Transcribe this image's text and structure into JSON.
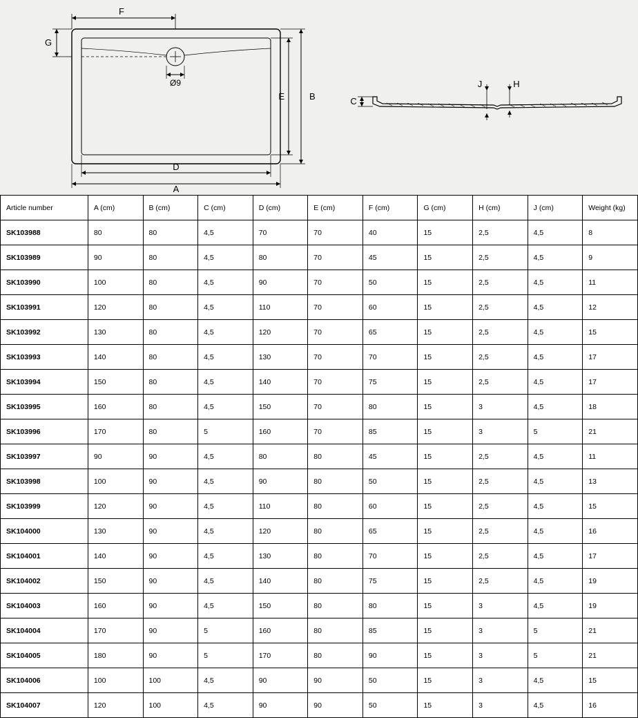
{
  "diagram": {
    "labels": {
      "F": "F",
      "G": "G",
      "D": "D",
      "A": "A",
      "E": "E",
      "B": "B",
      "C": "C",
      "J": "J",
      "H": "H",
      "diameter": "Ø9"
    },
    "colors": {
      "bg": "#f0f0ee",
      "line": "#000000",
      "hatch": "#000000"
    }
  },
  "table": {
    "columns": [
      "Article number",
      "A (cm)",
      "B (cm)",
      "C (cm)",
      "D (cm)",
      "E (cm)",
      "F (cm)",
      "G (cm)",
      "H (cm)",
      "J (cm)",
      "Weight (kg)"
    ],
    "rows": [
      [
        "SK103988",
        "80",
        "80",
        "4,5",
        "70",
        "70",
        "40",
        "15",
        "2,5",
        "4,5",
        "8"
      ],
      [
        "SK103989",
        "90",
        "80",
        "4,5",
        "80",
        "70",
        "45",
        "15",
        "2,5",
        "4,5",
        "9"
      ],
      [
        "SK103990",
        "100",
        "80",
        "4,5",
        "90",
        "70",
        "50",
        "15",
        "2,5",
        "4,5",
        "11"
      ],
      [
        "SK103991",
        "120",
        "80",
        "4,5",
        "110",
        "70",
        "60",
        "15",
        "2,5",
        "4,5",
        "12"
      ],
      [
        "SK103992",
        "130",
        "80",
        "4,5",
        "120",
        "70",
        "65",
        "15",
        "2,5",
        "4,5",
        "15"
      ],
      [
        "SK103993",
        "140",
        "80",
        "4,5",
        "130",
        "70",
        "70",
        "15",
        "2,5",
        "4,5",
        "17"
      ],
      [
        "SK103994",
        "150",
        "80",
        "4,5",
        "140",
        "70",
        "75",
        "15",
        "2,5",
        "4,5",
        "17"
      ],
      [
        "SK103995",
        "160",
        "80",
        "4,5",
        "150",
        "70",
        "80",
        "15",
        "3",
        "4,5",
        "18"
      ],
      [
        "SK103996",
        "170",
        "80",
        "5",
        "160",
        "70",
        "85",
        "15",
        "3",
        "5",
        "21"
      ],
      [
        "SK103997",
        "90",
        "90",
        "4,5",
        "80",
        "80",
        "45",
        "15",
        "2,5",
        "4,5",
        "11"
      ],
      [
        "SK103998",
        "100",
        "90",
        "4,5",
        "90",
        "80",
        "50",
        "15",
        "2,5",
        "4,5",
        "13"
      ],
      [
        "SK103999",
        "120",
        "90",
        "4,5",
        "110",
        "80",
        "60",
        "15",
        "2,5",
        "4,5",
        "15"
      ],
      [
        "SK104000",
        "130",
        "90",
        "4,5",
        "120",
        "80",
        "65",
        "15",
        "2,5",
        "4,5",
        "16"
      ],
      [
        "SK104001",
        "140",
        "90",
        "4,5",
        "130",
        "80",
        "70",
        "15",
        "2,5",
        "4,5",
        "17"
      ],
      [
        "SK104002",
        "150",
        "90",
        "4,5",
        "140",
        "80",
        "75",
        "15",
        "2,5",
        "4,5",
        "19"
      ],
      [
        "SK104003",
        "160",
        "90",
        "4,5",
        "150",
        "80",
        "80",
        "15",
        "3",
        "4,5",
        "19"
      ],
      [
        "SK104004",
        "170",
        "90",
        "5",
        "160",
        "80",
        "85",
        "15",
        "3",
        "5",
        "21"
      ],
      [
        "SK104005",
        "180",
        "90",
        "5",
        "170",
        "80",
        "90",
        "15",
        "3",
        "5",
        "21"
      ],
      [
        "SK104006",
        "100",
        "100",
        "4,5",
        "90",
        "90",
        "50",
        "15",
        "3",
        "4,5",
        "15"
      ],
      [
        "SK104007",
        "120",
        "100",
        "4,5",
        "90",
        "90",
        "50",
        "15",
        "3",
        "4,5",
        "16"
      ]
    ]
  }
}
